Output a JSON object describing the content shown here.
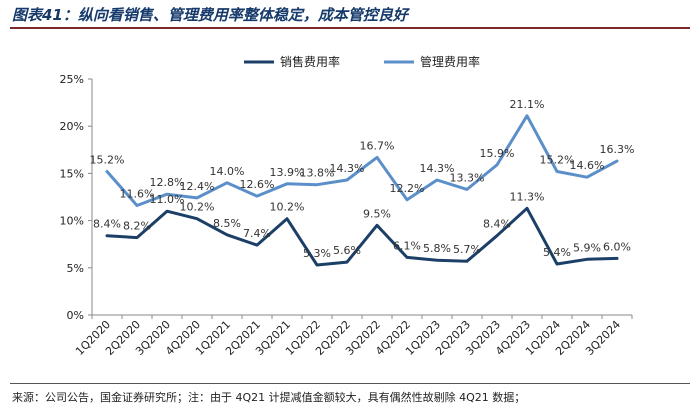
{
  "title": "图表41：纵向看销售、管理费用率整体稳定，成本管控良好",
  "source": "来源：公司公告，国金证券研究所；注：由于 4Q21 计提减值金额较大，具有偶然性故剔除 4Q21 数据；",
  "colors": {
    "sales": "#1b3f66",
    "admin": "#5b8fc9",
    "axis": "#888888"
  },
  "chart_data": {
    "type": "line",
    "categories": [
      "1Q2020",
      "2Q2020",
      "3Q2020",
      "4Q2020",
      "1Q2021",
      "2Q2021",
      "3Q2021",
      "1Q2022",
      "2Q2022",
      "3Q2022",
      "4Q2022",
      "1Q2023",
      "2Q2023",
      "3Q2023",
      "4Q2023",
      "1Q2024",
      "2Q2024",
      "3Q2024"
    ],
    "y_ticks": [
      "0%",
      "5%",
      "10%",
      "15%",
      "20%",
      "25%"
    ],
    "ylim": [
      0,
      25
    ],
    "series": [
      {
        "name": "销售费用率",
        "color": "#1b3f66",
        "values": [
          8.4,
          8.2,
          11.0,
          10.2,
          8.5,
          7.4,
          10.2,
          5.3,
          5.6,
          9.5,
          6.1,
          5.8,
          5.7,
          8.4,
          11.3,
          5.4,
          5.9,
          6.0
        ],
        "labels": [
          "8.4%",
          "8.2%",
          "11.0%",
          "10.2%",
          "8.5%",
          "7.4%",
          "10.2%",
          "5.3%",
          "5.6%",
          "9.5%",
          "6.1%",
          "5.8%",
          "5.7%",
          "8.4%",
          "11.3%",
          "5.4%",
          "5.9%",
          "6.0%"
        ]
      },
      {
        "name": "管理费用率",
        "color": "#5b8fc9",
        "values": [
          15.2,
          11.6,
          12.8,
          12.4,
          14.0,
          12.6,
          13.9,
          13.8,
          14.3,
          16.7,
          12.2,
          14.3,
          13.3,
          15.9,
          21.1,
          15.2,
          14.6,
          16.3
        ],
        "labels": [
          "15.2%",
          "11.6%",
          "12.8%",
          "12.4%",
          "14.0%",
          "12.6%",
          "13.9%",
          "13.8%",
          "14.3%",
          "16.7%",
          "12.2%",
          "14.3%",
          "13.3%",
          "15.9%",
          "21.1%",
          "15.2%",
          "14.6%",
          "16.3%"
        ]
      }
    ],
    "legend": "top-center"
  }
}
